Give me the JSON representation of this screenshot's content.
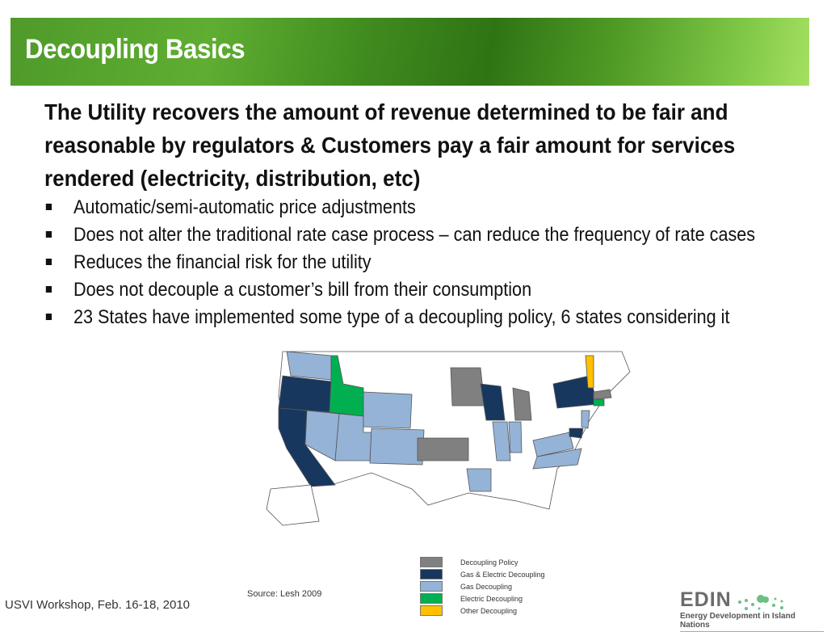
{
  "header": {
    "title": "Decoupling Basics"
  },
  "intro": "The Utility recovers the amount of revenue determined to be fair and reasonable by regulators & Customers pay a fair amount for services rendered (electricity, distribution, etc)",
  "bullets": [
    "Automatic/semi-automatic price adjustments",
    "Does not alter the traditional rate case process –  can reduce the frequency of rate cases",
    "Reduces the financial risk for the utility",
    "Does not decouple a customer’s bill from their consumption",
    "23 States have implemented some type of a decoupling policy, 6 states considering it"
  ],
  "legend": [
    {
      "label": "Decoupling Policy",
      "color": "#808080"
    },
    {
      "label": "Gas & Electric Decoupling",
      "color": "#17375e"
    },
    {
      "label": "Gas Decoupling",
      "color": "#95b3d7"
    },
    {
      "label": "Electric Decoupling",
      "color": "#00b050"
    },
    {
      "label": "Other Decoupling",
      "color": "#ffc000"
    }
  ],
  "source": "Source: Lesh 2009",
  "footer": "USVI Workshop, Feb. 16-18, 2010",
  "logo": {
    "name": "EDIN",
    "tagline": "Energy Development in Island Nations"
  }
}
